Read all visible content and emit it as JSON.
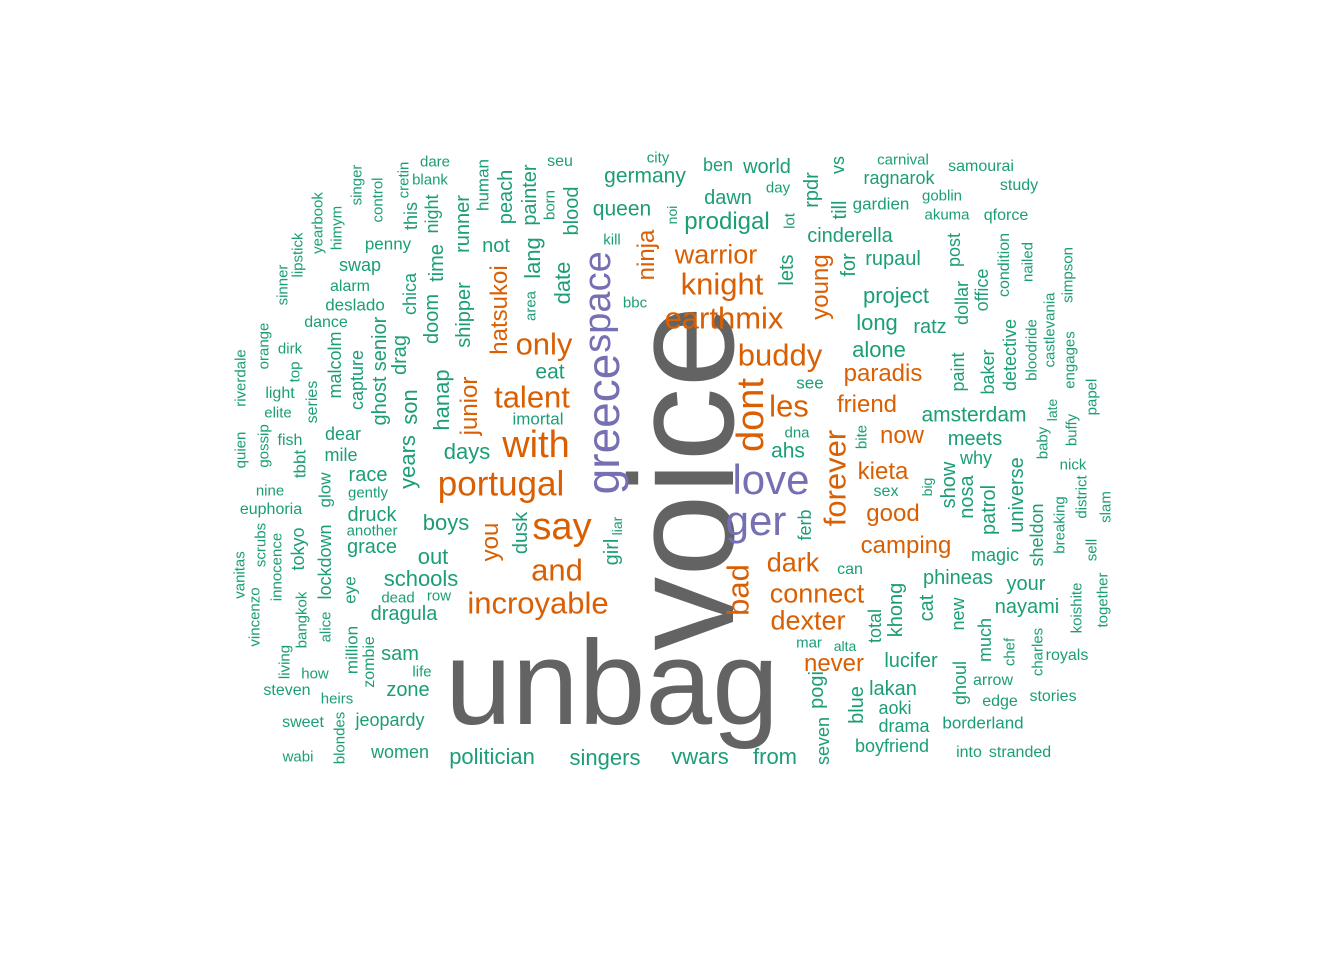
{
  "colors": {
    "t1": "#636363",
    "t2": "#7570b3",
    "t3": "#d95f02",
    "t4": "#1b9e77"
  },
  "words": [
    {
      "text": "voice",
      "tier": "t1"
    },
    {
      "text": "unbag",
      "tier": "t1"
    },
    {
      "text": "greece",
      "tier": "t2"
    },
    {
      "text": "love",
      "tier": "t2"
    },
    {
      "text": "ger",
      "tier": "t2"
    },
    {
      "text": "space",
      "tier": "t2"
    },
    {
      "text": "say",
      "tier": "t3"
    },
    {
      "text": "with",
      "tier": "t3"
    },
    {
      "text": "portugal",
      "tier": "t3"
    },
    {
      "text": "talent",
      "tier": "t3"
    },
    {
      "text": "only",
      "tier": "t3"
    },
    {
      "text": "and",
      "tier": "t3"
    },
    {
      "text": "incroyable",
      "tier": "t3"
    },
    {
      "text": "earthmix",
      "tier": "t3"
    },
    {
      "text": "knight",
      "tier": "t3"
    },
    {
      "text": "warrior",
      "tier": "t3"
    },
    {
      "text": "buddy",
      "tier": "t3"
    },
    {
      "text": "dont",
      "tier": "t3"
    },
    {
      "text": "les",
      "tier": "t3"
    },
    {
      "text": "forever",
      "tier": "t3"
    },
    {
      "text": "bad",
      "tier": "t3"
    },
    {
      "text": "dark",
      "tier": "t3"
    },
    {
      "text": "connect",
      "tier": "t3"
    },
    {
      "text": "dexter",
      "tier": "t3"
    },
    {
      "text": "never",
      "tier": "t3"
    },
    {
      "text": "camping",
      "tier": "t3"
    },
    {
      "text": "good",
      "tier": "t3"
    },
    {
      "text": "kieta",
      "tier": "t3"
    },
    {
      "text": "now",
      "tier": "t3"
    },
    {
      "text": "friend",
      "tier": "t3"
    },
    {
      "text": "paradis",
      "tier": "t3"
    },
    {
      "text": "young",
      "tier": "t3"
    },
    {
      "text": "ninja",
      "tier": "t3"
    },
    {
      "text": "you",
      "tier": "t3"
    },
    {
      "text": "junior",
      "tier": "t3"
    },
    {
      "text": "hatsukoi",
      "tier": "t3"
    },
    {
      "text": "germany",
      "tier": "t4"
    },
    {
      "text": "queen",
      "tier": "t4"
    },
    {
      "text": "prodigal",
      "tier": "t4"
    },
    {
      "text": "dawn",
      "tier": "t4"
    },
    {
      "text": "world",
      "tier": "t4"
    },
    {
      "text": "ben",
      "tier": "t4"
    },
    {
      "text": "cinderella",
      "tier": "t4"
    },
    {
      "text": "rupaul",
      "tier": "t4"
    },
    {
      "text": "project",
      "tier": "t4"
    },
    {
      "text": "long",
      "tier": "t4"
    },
    {
      "text": "ratz",
      "tier": "t4"
    },
    {
      "text": "alone",
      "tier": "t4"
    },
    {
      "text": "amsterdam",
      "tier": "t4"
    },
    {
      "text": "meets",
      "tier": "t4"
    },
    {
      "text": "ahs",
      "tier": "t4"
    },
    {
      "text": "see",
      "tier": "t4"
    },
    {
      "text": "lets",
      "tier": "t4"
    },
    {
      "text": "eat",
      "tier": "t4"
    },
    {
      "text": "imortal",
      "tier": "t4"
    },
    {
      "text": "days",
      "tier": "t4"
    },
    {
      "text": "boys",
      "tier": "t4"
    },
    {
      "text": "out",
      "tier": "t4"
    },
    {
      "text": "schools",
      "tier": "t4"
    },
    {
      "text": "dragula",
      "tier": "t4"
    },
    {
      "text": "sam",
      "tier": "t4"
    },
    {
      "text": "zone",
      "tier": "t4"
    },
    {
      "text": "jeopardy",
      "tier": "t4"
    },
    {
      "text": "women",
      "tier": "t4"
    },
    {
      "text": "politician",
      "tier": "t4"
    },
    {
      "text": "singers",
      "tier": "t4"
    },
    {
      "text": "vwars",
      "tier": "t4"
    },
    {
      "text": "from",
      "tier": "t4"
    },
    {
      "text": "phineas",
      "tier": "t4"
    },
    {
      "text": "your",
      "tier": "t4"
    },
    {
      "text": "nayami",
      "tier": "t4"
    },
    {
      "text": "lucifer",
      "tier": "t4"
    },
    {
      "text": "lakan",
      "tier": "t4"
    },
    {
      "text": "aoki",
      "tier": "t4"
    },
    {
      "text": "drama",
      "tier": "t4"
    },
    {
      "text": "boyfriend",
      "tier": "t4"
    },
    {
      "text": "borderland",
      "tier": "t4"
    },
    {
      "text": "into",
      "tier": "t4"
    },
    {
      "text": "stranded",
      "tier": "t4"
    },
    {
      "text": "stories",
      "tier": "t4"
    },
    {
      "text": "edge",
      "tier": "t4"
    },
    {
      "text": "arrow",
      "tier": "t4"
    },
    {
      "text": "royals",
      "tier": "t4"
    },
    {
      "text": "magic",
      "tier": "t4"
    },
    {
      "text": "race",
      "tier": "t4"
    },
    {
      "text": "dear",
      "tier": "t4"
    },
    {
      "text": "mile",
      "tier": "t4"
    },
    {
      "text": "druck",
      "tier": "t4"
    },
    {
      "text": "grace",
      "tier": "t4"
    },
    {
      "text": "gently",
      "tier": "t4"
    },
    {
      "text": "another",
      "tier": "t4"
    },
    {
      "text": "dead",
      "tier": "t4"
    },
    {
      "text": "row",
      "tier": "t4"
    },
    {
      "text": "life",
      "tier": "t4"
    },
    {
      "text": "heirs",
      "tier": "t4"
    },
    {
      "text": "how",
      "tier": "t4"
    },
    {
      "text": "sweet",
      "tier": "t4"
    },
    {
      "text": "wabi",
      "tier": "t4"
    },
    {
      "text": "steven",
      "tier": "t4"
    },
    {
      "text": "swap",
      "tier": "t4"
    },
    {
      "text": "penny",
      "tier": "t4"
    },
    {
      "text": "deslado",
      "tier": "t4"
    },
    {
      "text": "alarm",
      "tier": "t4"
    },
    {
      "text": "dance",
      "tier": "t4"
    },
    {
      "text": "dirk",
      "tier": "t4"
    },
    {
      "text": "light",
      "tier": "t4"
    },
    {
      "text": "elite",
      "tier": "t4"
    },
    {
      "text": "fish",
      "tier": "t4"
    },
    {
      "text": "nine",
      "tier": "t4"
    },
    {
      "text": "euphoria",
      "tier": "t4"
    },
    {
      "text": "samourai",
      "tier": "t4"
    },
    {
      "text": "study",
      "tier": "t4"
    },
    {
      "text": "ragnarok",
      "tier": "t4"
    },
    {
      "text": "gardien",
      "tier": "t4"
    },
    {
      "text": "goblin",
      "tier": "t4"
    },
    {
      "text": "akuma",
      "tier": "t4"
    },
    {
      "text": "qforce",
      "tier": "t4"
    },
    {
      "text": "carnival",
      "tier": "t4"
    },
    {
      "text": "day",
      "tier": "t4"
    },
    {
      "text": "kill",
      "tier": "t4"
    },
    {
      "text": "bbc",
      "tier": "t4"
    },
    {
      "text": "seu",
      "tier": "t4"
    },
    {
      "text": "city",
      "tier": "t4"
    },
    {
      "text": "dare",
      "tier": "t4"
    },
    {
      "text": "blank",
      "tier": "t4"
    },
    {
      "text": "sex",
      "tier": "t4"
    },
    {
      "text": "why",
      "tier": "t4"
    },
    {
      "text": "can",
      "tier": "t4"
    },
    {
      "text": "mar",
      "tier": "t4"
    },
    {
      "text": "alta",
      "tier": "t4"
    },
    {
      "text": "dna",
      "tier": "t4"
    },
    {
      "text": "bite",
      "tier": "t4"
    },
    {
      "text": "nick",
      "tier": "t4"
    },
    {
      "text": "peach",
      "tier": "t4"
    },
    {
      "text": "painter",
      "tier": "t4"
    },
    {
      "text": "blood",
      "tier": "t4"
    },
    {
      "text": "born",
      "tier": "t4"
    },
    {
      "text": "human",
      "tier": "t4"
    },
    {
      "text": "shipper",
      "tier": "t4"
    },
    {
      "text": "runner",
      "tier": "t4"
    },
    {
      "text": "not",
      "tier": "t4"
    },
    {
      "text": "lang",
      "tier": "t4"
    },
    {
      "text": "date",
      "tier": "t4"
    },
    {
      "text": "area",
      "tier": "t4"
    },
    {
      "text": "hanap",
      "tier": "t4"
    },
    {
      "text": "doom",
      "tier": "t4"
    },
    {
      "text": "time",
      "tier": "t4"
    },
    {
      "text": "night",
      "tier": "t4"
    },
    {
      "text": "this",
      "tier": "t4"
    },
    {
      "text": "cretin",
      "tier": "t4"
    },
    {
      "text": "chica",
      "tier": "t4"
    },
    {
      "text": "drag",
      "tier": "t4"
    },
    {
      "text": "senior",
      "tier": "t4"
    },
    {
      "text": "capture",
      "tier": "t4"
    },
    {
      "text": "malcolm",
      "tier": "t4"
    },
    {
      "text": "ghost",
      "tier": "t4"
    },
    {
      "text": "son",
      "tier": "t4"
    },
    {
      "text": "years",
      "tier": "t4"
    },
    {
      "text": "dusk",
      "tier": "t4"
    },
    {
      "text": "girl",
      "tier": "t4"
    },
    {
      "text": "liar",
      "tier": "t4"
    },
    {
      "text": "control",
      "tier": "t4"
    },
    {
      "text": "singer",
      "tier": "t4"
    },
    {
      "text": "himym",
      "tier": "t4"
    },
    {
      "text": "yearbook",
      "tier": "t4"
    },
    {
      "text": "lipstick",
      "tier": "t4"
    },
    {
      "text": "sinner",
      "tier": "t4"
    },
    {
      "text": "orange",
      "tier": "t4"
    },
    {
      "text": "riverdale",
      "tier": "t4"
    },
    {
      "text": "quien",
      "tier": "t4"
    },
    {
      "text": "gossip",
      "tier": "t4"
    },
    {
      "text": "top",
      "tier": "t4"
    },
    {
      "text": "series",
      "tier": "t4"
    },
    {
      "text": "tbbt",
      "tier": "t4"
    },
    {
      "text": "glow",
      "tier": "t4"
    },
    {
      "text": "lockdown",
      "tier": "t4"
    },
    {
      "text": "tokyo",
      "tier": "t4"
    },
    {
      "text": "scrubs",
      "tier": "t4"
    },
    {
      "text": "innocence",
      "tier": "t4"
    },
    {
      "text": "vanitas",
      "tier": "t4"
    },
    {
      "text": "vincenzo",
      "tier": "t4"
    },
    {
      "text": "bangkok",
      "tier": "t4"
    },
    {
      "text": "alice",
      "tier": "t4"
    },
    {
      "text": "eye",
      "tier": "t4"
    },
    {
      "text": "million",
      "tier": "t4"
    },
    {
      "text": "zombie",
      "tier": "t4"
    },
    {
      "text": "living",
      "tier": "t4"
    },
    {
      "text": "blondes",
      "tier": "t4"
    },
    {
      "text": "till",
      "tier": "t4"
    },
    {
      "text": "for",
      "tier": "t4"
    },
    {
      "text": "rpdr",
      "tier": "t4"
    },
    {
      "text": "vs",
      "tier": "t4"
    },
    {
      "text": "lot",
      "tier": "t4"
    },
    {
      "text": "noi",
      "tier": "t4"
    },
    {
      "text": "post",
      "tier": "t4"
    },
    {
      "text": "dollar",
      "tier": "t4"
    },
    {
      "text": "office",
      "tier": "t4"
    },
    {
      "text": "condition",
      "tier": "t4"
    },
    {
      "text": "nailed",
      "tier": "t4"
    },
    {
      "text": "simpson",
      "tier": "t4"
    },
    {
      "text": "castlevania",
      "tier": "t4"
    },
    {
      "text": "engages",
      "tier": "t4"
    },
    {
      "text": "papel",
      "tier": "t4"
    },
    {
      "text": "paint",
      "tier": "t4"
    },
    {
      "text": "baker",
      "tier": "t4"
    },
    {
      "text": "detective",
      "tier": "t4"
    },
    {
      "text": "bloodride",
      "tier": "t4"
    },
    {
      "text": "late",
      "tier": "t4"
    },
    {
      "text": "buffy",
      "tier": "t4"
    },
    {
      "text": "baby",
      "tier": "t4"
    },
    {
      "text": "show",
      "tier": "t4"
    },
    {
      "text": "nosa",
      "tier": "t4"
    },
    {
      "text": "patrol",
      "tier": "t4"
    },
    {
      "text": "universe",
      "tier": "t4"
    },
    {
      "text": "sheldon",
      "tier": "t4"
    },
    {
      "text": "breaking",
      "tier": "t4"
    },
    {
      "text": "district",
      "tier": "t4"
    },
    {
      "text": "sell",
      "tier": "t4"
    },
    {
      "text": "slam",
      "tier": "t4"
    },
    {
      "text": "koishite",
      "tier": "t4"
    },
    {
      "text": "together",
      "tier": "t4"
    },
    {
      "text": "big",
      "tier": "t4"
    },
    {
      "text": "cat",
      "tier": "t4"
    },
    {
      "text": "khong",
      "tier": "t4"
    },
    {
      "text": "total",
      "tier": "t4"
    },
    {
      "text": "new",
      "tier": "t4"
    },
    {
      "text": "much",
      "tier": "t4"
    },
    {
      "text": "chef",
      "tier": "t4"
    },
    {
      "text": "charles",
      "tier": "t4"
    },
    {
      "text": "ghoul",
      "tier": "t4"
    },
    {
      "text": "pogi",
      "tier": "t4"
    },
    {
      "text": "blue",
      "tier": "t4"
    },
    {
      "text": "ferb",
      "tier": "t4"
    },
    {
      "text": "seven",
      "tier": "t4"
    }
  ]
}
